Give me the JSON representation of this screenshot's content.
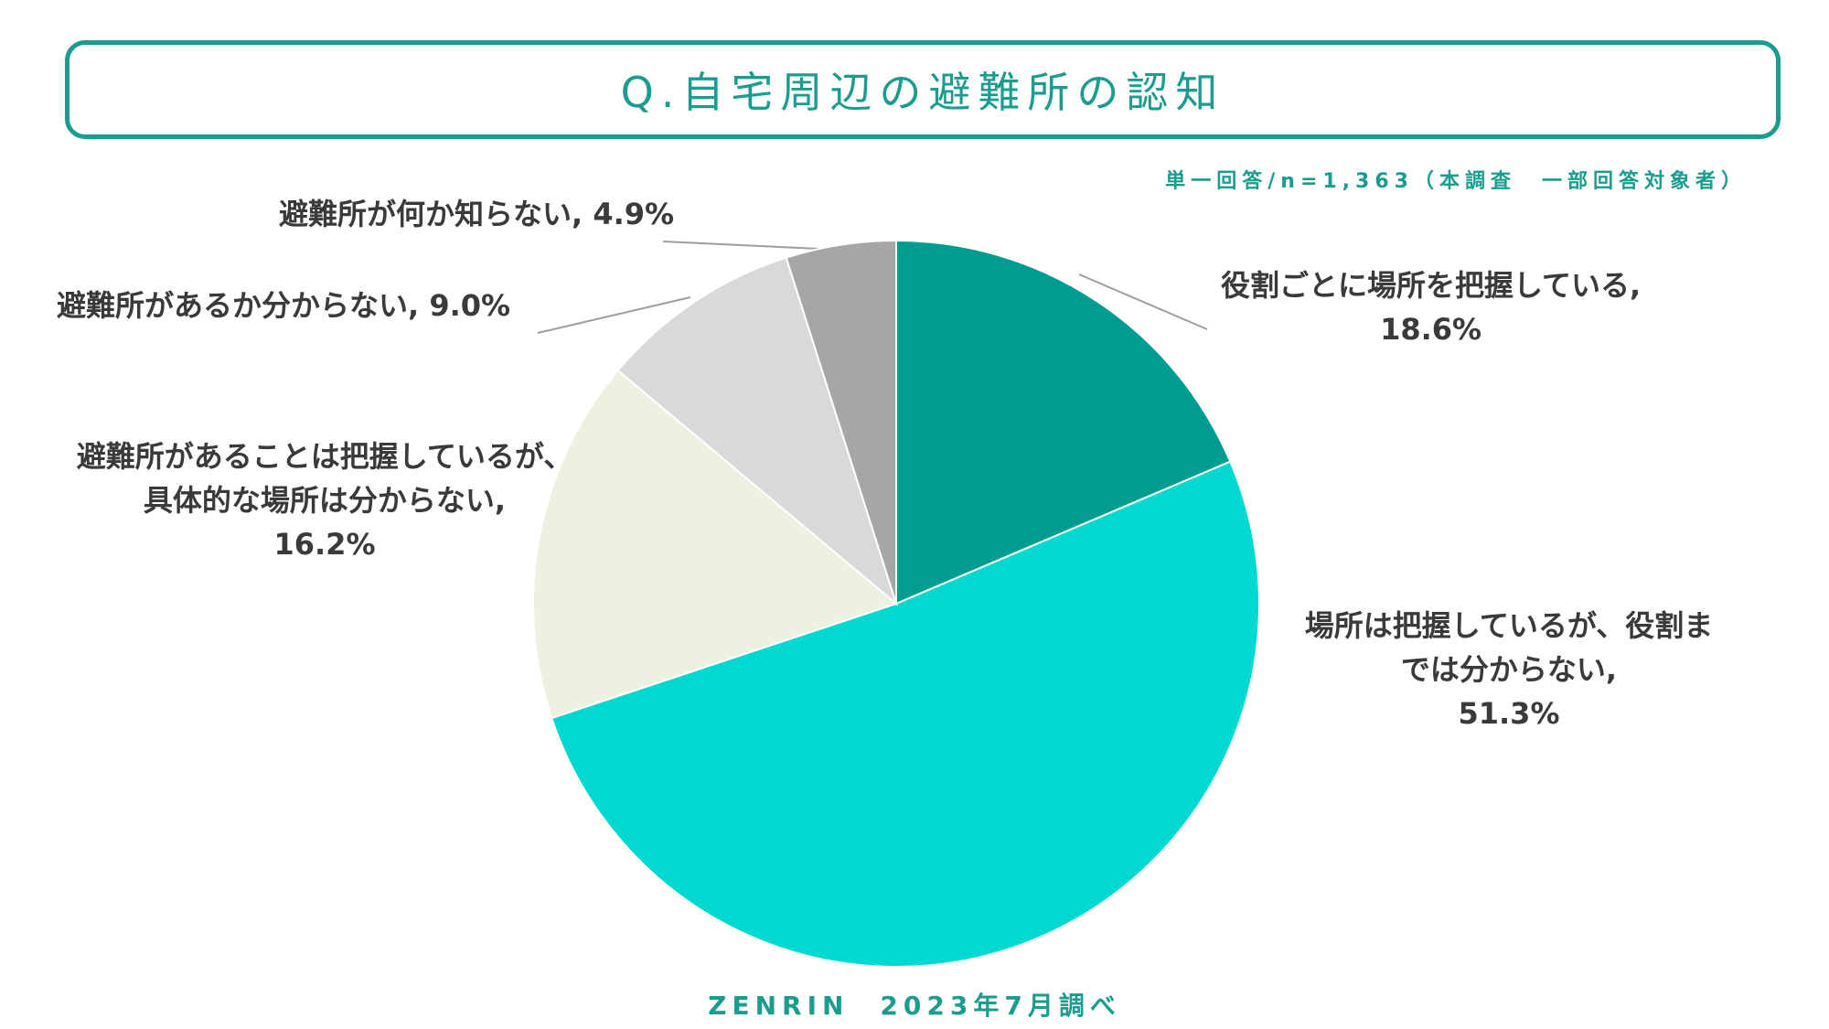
{
  "title": "Q.自宅周辺の避難所の認知",
  "subtitle": "単一回答/n=1,363（本調査　一部回答対象者）",
  "footer": "ZENRIN　2023年7月調べ",
  "colors": {
    "accent": "#1a9c8e",
    "slice_1": "#009b91",
    "slice_2": "#00d9d0",
    "slice_3": "#eef0e1",
    "slice_4": "#d9d9d9",
    "slice_5": "#a6a6a6"
  },
  "chart_data": {
    "type": "pie",
    "start": "12 o'clock",
    "direction": "clockwise",
    "slices": [
      {
        "label": "役割ごとに場所を把握している,",
        "value": 18.6,
        "value_label": "18.6%"
      },
      {
        "label": "場所は把握しているが、役割までは分からない,",
        "value": 51.3,
        "value_label": "51.3%"
      },
      {
        "label": "避難所があることは把握しているが、具体的な場所は分からない,",
        "value": 16.2,
        "value_label": "16.2%"
      },
      {
        "label": "避難所があるか分からない,",
        "value": 9.0,
        "value_label": "9.0%"
      },
      {
        "label": "避難所が何か知らない,",
        "value": 4.9,
        "value_label": "4.9%"
      }
    ]
  }
}
